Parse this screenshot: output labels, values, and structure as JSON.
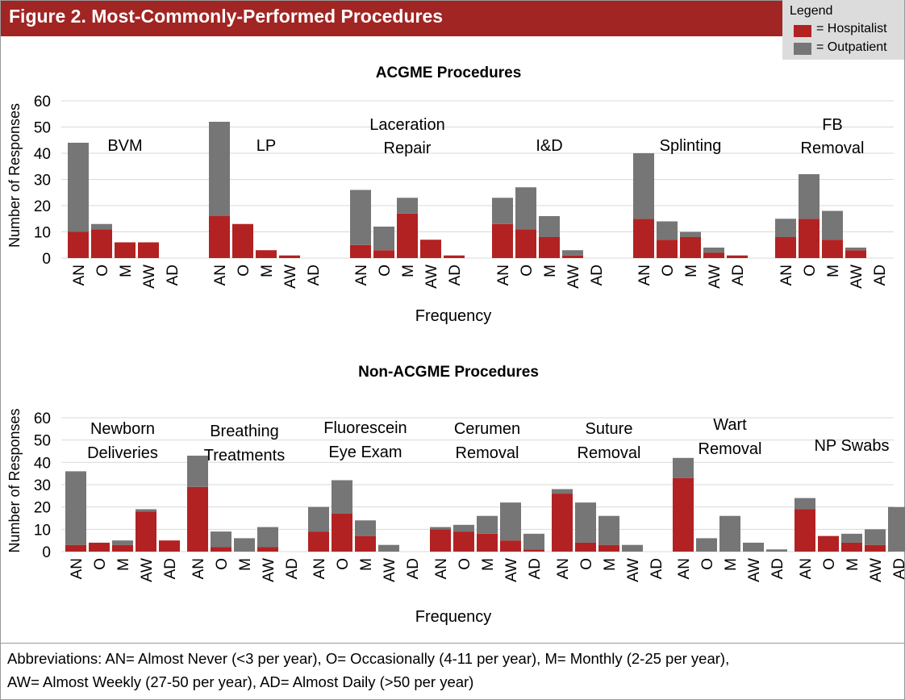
{
  "title": "Figure 2. Most-Commonly-Performed Procedures",
  "legend": {
    "title": "Legend",
    "items": [
      {
        "label": "= Hospitalist",
        "color": "#b22222"
      },
      {
        "label": "= Outpatient",
        "color": "#767676"
      }
    ]
  },
  "footnote": {
    "line1": "Abbreviations: AN= Almost Never (<3 per year), O= Occasionally (4-11 per year), M= Monthly (2-25 per year),",
    "line2": "AW= Almost Weekly (27-50 per year), AD= Almost Daily (>50 per year)"
  },
  "chart_data": [
    {
      "type": "bar",
      "stacked": true,
      "title": "ACGME Procedures",
      "xlabel": "Frequency",
      "ylabel": "Number of Responses",
      "ylim": [
        0,
        60
      ],
      "yticks": [
        0,
        10,
        20,
        30,
        40,
        50,
        60
      ],
      "categories": [
        "AN",
        "O",
        "M",
        "AW",
        "AD"
      ],
      "series_colors": {
        "Hospitalist": "#b22222",
        "Outpatient": "#767676"
      },
      "groups": [
        {
          "label": [
            "BVM"
          ],
          "hospitalist": [
            10,
            11,
            6,
            6,
            0
          ],
          "outpatient": [
            34,
            2,
            0,
            0,
            0
          ]
        },
        {
          "label": [
            "LP"
          ],
          "hospitalist": [
            16,
            13,
            3,
            1,
            0
          ],
          "outpatient": [
            36,
            0,
            0,
            0,
            0
          ]
        },
        {
          "label": [
            "Laceration",
            "Repair"
          ],
          "hospitalist": [
            5,
            3,
            17,
            7,
            1
          ],
          "outpatient": [
            21,
            9,
            6,
            0,
            0
          ]
        },
        {
          "label": [
            "I&D"
          ],
          "hospitalist": [
            13,
            11,
            8,
            1,
            0
          ],
          "outpatient": [
            10,
            16,
            8,
            2,
            0
          ]
        },
        {
          "label": [
            "Splinting"
          ],
          "hospitalist": [
            15,
            7,
            8,
            2,
            1
          ],
          "outpatient": [
            25,
            7,
            2,
            2,
            0
          ]
        },
        {
          "label": [
            "FB",
            "Removal"
          ],
          "hospitalist": [
            8,
            15,
            7,
            3,
            0
          ],
          "outpatient": [
            7,
            17,
            11,
            1,
            0
          ]
        }
      ]
    },
    {
      "type": "bar",
      "stacked": true,
      "title": "Non-ACGME Procedures",
      "xlabel": "Frequency",
      "ylabel": "Number of Responses",
      "ylim": [
        0,
        60
      ],
      "yticks": [
        0,
        10,
        20,
        30,
        40,
        50,
        60
      ],
      "categories": [
        "AN",
        "O",
        "M",
        "AW",
        "AD"
      ],
      "series_colors": {
        "Hospitalist": "#b22222",
        "Outpatient": "#767676"
      },
      "groups": [
        {
          "label": [
            "Newborn",
            "Deliveries"
          ],
          "hospitalist": [
            3,
            4,
            3,
            18,
            5
          ],
          "outpatient": [
            33,
            0,
            2,
            1,
            0
          ]
        },
        {
          "label": [
            "Breathing",
            "Treatments"
          ],
          "hospitalist": [
            29,
            2,
            0,
            2,
            0
          ],
          "outpatient": [
            14,
            7,
            6,
            9,
            0
          ]
        },
        {
          "label": [
            "Fluorescein",
            "Eye Exam"
          ],
          "hospitalist": [
            9,
            17,
            7,
            0,
            0
          ],
          "outpatient": [
            11,
            15,
            7,
            3,
            0
          ]
        },
        {
          "label": [
            "Cerumen",
            "Removal"
          ],
          "hospitalist": [
            10,
            9,
            8,
            5,
            1
          ],
          "outpatient": [
            1,
            3,
            8,
            17,
            7
          ]
        },
        {
          "label": [
            "Suture",
            "Removal"
          ],
          "hospitalist": [
            26,
            4,
            3,
            0,
            0
          ],
          "outpatient": [
            2,
            18,
            13,
            3,
            0
          ]
        },
        {
          "label": [
            "Wart",
            "Removal"
          ],
          "hospitalist": [
            33,
            0,
            0,
            0,
            0
          ],
          "outpatient": [
            9,
            6,
            16,
            4,
            1
          ]
        },
        {
          "label": [
            "NP Swabs"
          ],
          "hospitalist": [
            19,
            7,
            4,
            3,
            0
          ],
          "outpatient": [
            5,
            0,
            4,
            7,
            20
          ]
        }
      ]
    }
  ]
}
